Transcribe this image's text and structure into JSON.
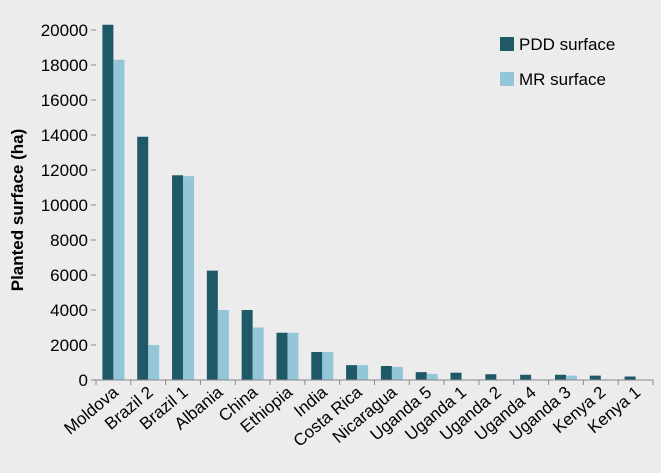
{
  "chart_data": {
    "type": "bar",
    "title": "",
    "xlabel": "",
    "ylabel": "Planted surface (ha)",
    "ylim": [
      0,
      20000
    ],
    "yticks": [
      0,
      2000,
      4000,
      6000,
      8000,
      10000,
      12000,
      14000,
      16000,
      18000,
      20000
    ],
    "grid": false,
    "legend_position": "top-right",
    "categories": [
      "Moldova",
      "Brazil 2",
      "Brazil 1",
      "Albania",
      "China",
      "Ethiopia",
      "India",
      "Costa Rica",
      "Nicaragua",
      "Uganda 5",
      "Uganda 1",
      "Uganda 2",
      "Uganda 4",
      "Uganda 3",
      "Kenya 2",
      "Kenya 1"
    ],
    "series": [
      {
        "name": "PDD surface",
        "color": "#1f5968",
        "values": [
          20300,
          13900,
          11700,
          6250,
          4000,
          2700,
          1600,
          850,
          800,
          450,
          420,
          330,
          300,
          300,
          250,
          200
        ]
      },
      {
        "name": "MR surface",
        "color": "#92c6d8",
        "values": [
          18300,
          2000,
          11650,
          4000,
          3000,
          2700,
          1600,
          850,
          750,
          350,
          0,
          0,
          0,
          250,
          0,
          0
        ]
      }
    ]
  }
}
